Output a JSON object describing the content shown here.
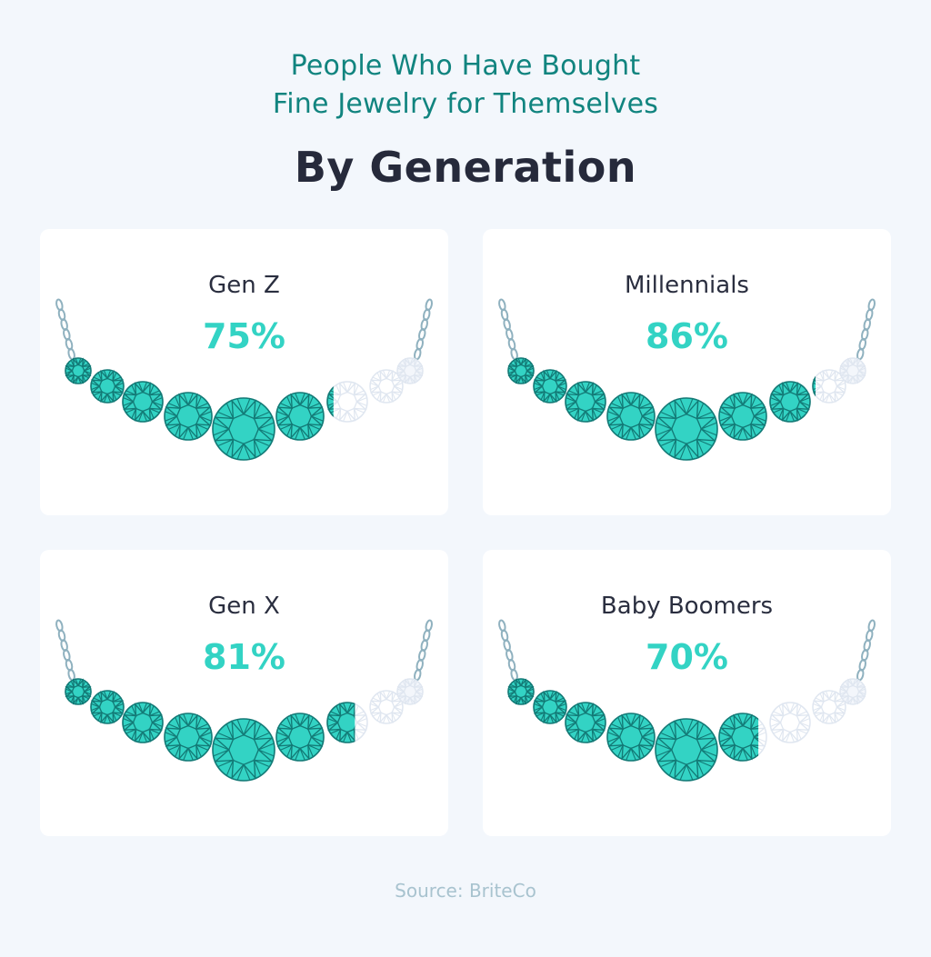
{
  "header": {
    "subtitle_line1": "People Who Have Bought",
    "subtitle_line2": "Fine Jewelry for Themselves",
    "title": "By Generation"
  },
  "cards": [
    {
      "label": "Gen Z",
      "value": "75%",
      "percent": 75
    },
    {
      "label": "Millennials",
      "value": "86%",
      "percent": 86
    },
    {
      "label": "Gen X",
      "value": "81%",
      "percent": 81
    },
    {
      "label": "Baby Boomers",
      "value": "70%",
      "percent": 70
    }
  ],
  "footer": {
    "source": "Source: BriteCo"
  },
  "colors": {
    "background": "#f3f7fc",
    "subtitle": "#11847f",
    "heading": "#262a3b",
    "value": "#33d3c4",
    "gem_fill": "#33d3c4",
    "gem_stroke": "#137a76",
    "gem_empty_stroke": "#dfe6f0",
    "chain": "#8fb1bf",
    "source": "#a8c3cf"
  },
  "chart_data": {
    "type": "bar",
    "title": "People Who Have Bought Fine Jewelry for Themselves — By Generation",
    "categories": [
      "Gen Z",
      "Millennials",
      "Gen X",
      "Baby Boomers"
    ],
    "values": [
      75,
      86,
      81,
      70
    ],
    "unit": "%",
    "ylim": [
      0,
      100
    ],
    "xlabel": "",
    "ylabel": "",
    "legend": "none",
    "grid": false,
    "annotations": [
      "Source: BriteCo"
    ],
    "visual": "necklace of 9 gems filled left-to-right proportional to percent"
  }
}
